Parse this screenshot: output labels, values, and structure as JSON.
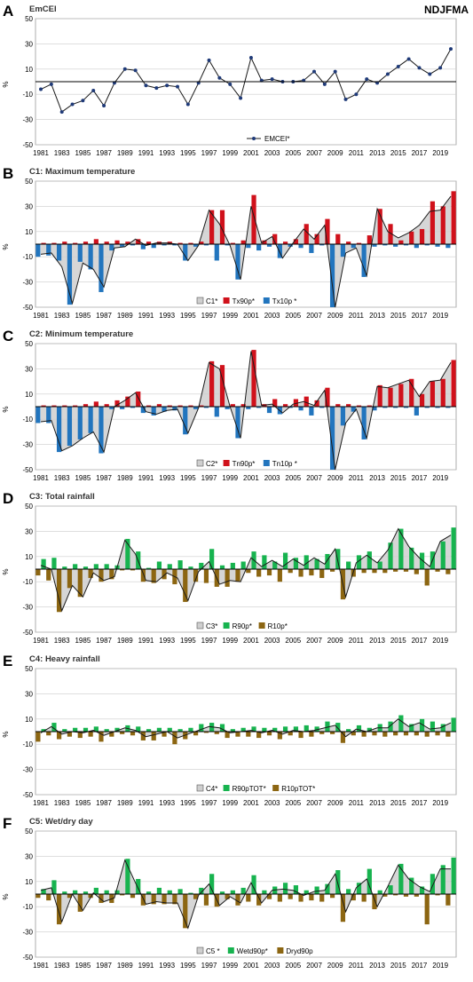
{
  "figure": {
    "season": "NDJFMA",
    "y_unit": "%",
    "years": [
      "1981",
      "1982",
      "1983",
      "1984",
      "1985",
      "1986",
      "1987",
      "1988",
      "1989",
      "1990",
      "1991",
      "1992",
      "1993",
      "1994",
      "1995",
      "1996",
      "1997",
      "1998",
      "1999",
      "2000",
      "2001",
      "2002",
      "2003",
      "2004",
      "2005",
      "2006",
      "2007",
      "2008",
      "2009",
      "2010",
      "2011",
      "2012",
      "2013",
      "2014",
      "2015",
      "2016",
      "2017",
      "2018",
      "2019",
      "2020"
    ],
    "x_tick_labels": [
      "1981",
      "1983",
      "1985",
      "1987",
      "1989",
      "1991",
      "1993",
      "1995",
      "1997",
      "1999",
      "2001",
      "2003",
      "2005",
      "2007",
      "2009",
      "2011",
      "2013",
      "2015",
      "2017",
      "2019"
    ],
    "colors": {
      "hot": "#d0111b",
      "cold": "#2275be",
      "wet": "#17b34f",
      "dry": "#8c6612",
      "line": "#1a1a1a",
      "marker": "#1f3a78",
      "area": "#cfcfcf",
      "grid": "#cccccc"
    }
  },
  "chart_data": [
    {
      "type": "line",
      "panel_letter": "A",
      "title": "EmCEI",
      "ylim": [
        -50,
        50
      ],
      "yticks": [
        50,
        30,
        10,
        -10,
        -30,
        -50
      ],
      "grid": true,
      "legend_position": "bottom-center",
      "series": [
        {
          "name": "EMCEI*",
          "values": [
            -6,
            -2,
            -24,
            -18,
            -15,
            -7,
            -19,
            -1,
            10,
            9,
            -3,
            -5,
            -3,
            -4,
            -18,
            -1,
            17,
            3,
            -2,
            -13,
            19,
            1,
            2,
            0,
            0,
            1,
            8,
            -2,
            8,
            -14,
            -10,
            2,
            -1,
            6,
            12,
            18,
            11,
            6,
            11,
            26
          ]
        }
      ]
    },
    {
      "type": "bar",
      "panel_letter": "B",
      "title": "C1: Maximum temperature",
      "ylim": [
        -50,
        50
      ],
      "yticks": [
        50,
        30,
        10,
        -10,
        -30,
        -50
      ],
      "grid": true,
      "legend_position": "bottom-center",
      "series": [
        {
          "name": "C1*",
          "style": "area",
          "values": [
            -8,
            -7,
            -18,
            -47,
            -15,
            -20,
            -34,
            -3,
            -2,
            4,
            -1,
            1,
            1,
            0,
            -13,
            -1,
            27,
            16,
            -1,
            -28,
            30,
            1,
            6,
            -11,
            1,
            12,
            4,
            15,
            -50,
            -7,
            -3,
            -25,
            28,
            10,
            5,
            9,
            15,
            26,
            27,
            38
          ]
        },
        {
          "name": "Tx90p*",
          "style": "bar-up",
          "values": [
            1,
            1,
            2,
            1,
            2,
            4,
            2,
            3,
            2,
            4,
            2,
            2,
            2,
            1,
            1,
            2,
            27,
            27,
            1,
            3,
            39,
            3,
            8,
            2,
            4,
            16,
            8,
            20,
            8,
            2,
            1,
            7,
            28,
            16,
            3,
            10,
            12,
            34,
            30,
            42
          ]
        },
        {
          "name": "Tx10p *",
          "style": "bar-down",
          "values": [
            -10,
            -9,
            -13,
            -48,
            -14,
            -20,
            -38,
            -5,
            -2,
            -1,
            -4,
            -3,
            -1,
            -1,
            -13,
            -2,
            -1,
            -13,
            -1,
            -28,
            -3,
            -5,
            -2,
            -11,
            -2,
            -3,
            -7,
            -1,
            -50,
            -10,
            -3,
            -26,
            -2,
            -1,
            -2,
            -1,
            -3,
            -1,
            -2,
            -3
          ]
        }
      ]
    },
    {
      "type": "bar",
      "panel_letter": "C",
      "title": "C2: Minimum temperature",
      "ylim": [
        -50,
        50
      ],
      "yticks": [
        50,
        30,
        10,
        -10,
        -30,
        -50
      ],
      "grid": true,
      "legend_position": "bottom-center",
      "series": [
        {
          "name": "C2*",
          "style": "area",
          "values": [
            -12,
            -11,
            -35,
            -31,
            -25,
            -20,
            -36,
            0,
            5,
            11,
            -4,
            -6,
            -3,
            -2,
            -21,
            -1,
            35,
            30,
            0,
            -25,
            44,
            1,
            2,
            -5,
            2,
            4,
            1,
            13,
            -50,
            -13,
            -2,
            -25,
            16,
            15,
            18,
            21,
            8,
            20,
            21,
            35
          ]
        },
        {
          "name": "Tn90p*",
          "style": "bar-up",
          "values": [
            1,
            1,
            1,
            1,
            2,
            4,
            2,
            5,
            8,
            12,
            1,
            2,
            1,
            1,
            1,
            1,
            36,
            33,
            2,
            2,
            45,
            2,
            6,
            2,
            6,
            8,
            5,
            15,
            2,
            2,
            1,
            1,
            17,
            15,
            18,
            22,
            10,
            20,
            22,
            37
          ]
        },
        {
          "name": "Tn10p *",
          "style": "bar-down",
          "values": [
            -13,
            -13,
            -36,
            -31,
            -26,
            -21,
            -37,
            -2,
            -2,
            -1,
            -5,
            -7,
            -4,
            -3,
            -22,
            -2,
            -1,
            -8,
            -2,
            -25,
            -2,
            -1,
            -5,
            -6,
            -1,
            -3,
            -7,
            -1,
            -50,
            -15,
            -4,
            -26,
            -3,
            -1,
            -1,
            -1,
            -7,
            -1,
            -1,
            -1
          ]
        }
      ]
    },
    {
      "type": "bar",
      "panel_letter": "D",
      "title": "C3: Total rainfall",
      "ylim": [
        -50,
        50
      ],
      "yticks": [
        50,
        30,
        10,
        -10,
        -30,
        -50
      ],
      "grid": true,
      "legend_position": "bottom-center",
      "series": [
        {
          "name": "C3*",
          "style": "area",
          "values": [
            3,
            0,
            -33,
            -13,
            -22,
            -3,
            -9,
            -6,
            23,
            12,
            -9,
            -10,
            -3,
            -7,
            -25,
            -2,
            6,
            -12,
            -9,
            -10,
            9,
            2,
            7,
            2,
            8,
            3,
            9,
            4,
            16,
            -22,
            5,
            11,
            5,
            15,
            32,
            18,
            9,
            2,
            22,
            27
          ]
        },
        {
          "name": "R90p*",
          "style": "bar-up",
          "values": [
            8,
            9,
            2,
            4,
            2,
            4,
            4,
            3,
            24,
            14,
            1,
            6,
            4,
            7,
            2,
            5,
            16,
            3,
            5,
            6,
            14,
            11,
            6,
            13,
            9,
            11,
            8,
            12,
            16,
            6,
            11,
            14,
            6,
            21,
            32,
            17,
            13,
            14,
            22,
            33
          ]
        },
        {
          "name": "R10p*",
          "style": "bar-down",
          "values": [
            -5,
            -9,
            -34,
            -15,
            -22,
            -7,
            -10,
            -8,
            -1,
            -1,
            -10,
            -11,
            -8,
            -12,
            -26,
            -10,
            -11,
            -14,
            -14,
            -10,
            -3,
            -6,
            -5,
            -10,
            -3,
            -6,
            -5,
            -7,
            -2,
            -24,
            -6,
            -3,
            -3,
            -3,
            -2,
            -2,
            -4,
            -13,
            -2,
            -4
          ]
        }
      ]
    },
    {
      "type": "bar",
      "panel_letter": "E",
      "title": "C4: Heavy rainfall",
      "ylim": [
        -50,
        50
      ],
      "yticks": [
        50,
        30,
        10,
        -10,
        -30,
        -50
      ],
      "grid": true,
      "legend_position": "bottom-center",
      "series": [
        {
          "name": "C4*",
          "style": "area",
          "values": [
            -1,
            4,
            -2,
            0,
            -1,
            1,
            -3,
            0,
            3,
            1,
            -4,
            -2,
            0,
            -5,
            -2,
            1,
            4,
            3,
            -1,
            0,
            1,
            -1,
            1,
            -2,
            1,
            0,
            1,
            3,
            5,
            -4,
            2,
            0,
            3,
            3,
            10,
            4,
            7,
            2,
            3,
            7
          ]
        },
        {
          "name": "R90pTOT*",
          "style": "bar-up",
          "values": [
            2,
            7,
            2,
            3,
            3,
            4,
            2,
            3,
            5,
            4,
            2,
            3,
            3,
            2,
            3,
            6,
            7,
            6,
            2,
            3,
            4,
            3,
            3,
            4,
            4,
            5,
            4,
            8,
            7,
            2,
            5,
            3,
            6,
            8,
            13,
            6,
            10,
            8,
            6,
            11
          ]
        },
        {
          "name": "R10pTOT*",
          "style": "bar-down",
          "values": [
            -8,
            -3,
            -6,
            -4,
            -5,
            -4,
            -8,
            -4,
            -2,
            -3,
            -7,
            -7,
            -4,
            -10,
            -6,
            -3,
            -1,
            -2,
            -5,
            -4,
            -4,
            -5,
            -3,
            -6,
            -3,
            -5,
            -4,
            -2,
            -2,
            -9,
            -3,
            -4,
            -3,
            -4,
            -3,
            -3,
            -3,
            -4,
            -3,
            -4
          ]
        }
      ]
    },
    {
      "type": "bar",
      "panel_letter": "F",
      "title": "C5: Wet/dry day",
      "ylim": [
        -50,
        50
      ],
      "yticks": [
        50,
        30,
        10,
        -10,
        -30,
        -50
      ],
      "grid": true,
      "legend_position": "bottom-center",
      "series": [
        {
          "name": "C5 *",
          "style": "area",
          "values": [
            3,
            5,
            -22,
            0,
            -13,
            1,
            -6,
            -3,
            27,
            9,
            -8,
            -6,
            -7,
            -7,
            -27,
            -1,
            8,
            -9,
            -2,
            -7,
            9,
            -7,
            3,
            4,
            3,
            -1,
            2,
            3,
            16,
            -14,
            5,
            12,
            -10,
            6,
            23,
            12,
            6,
            2,
            20,
            20
          ]
        },
        {
          "name": "Wetd90p*",
          "style": "bar-up",
          "values": [
            4,
            11,
            2,
            3,
            2,
            5,
            3,
            3,
            28,
            12,
            2,
            5,
            3,
            4,
            1,
            5,
            16,
            2,
            3,
            5,
            15,
            3,
            6,
            9,
            7,
            3,
            6,
            8,
            19,
            4,
            9,
            20,
            3,
            7,
            24,
            13,
            6,
            16,
            23,
            29
          ]
        },
        {
          "name": "Dryd90p",
          "style": "bar-down",
          "values": [
            -3,
            -5,
            -24,
            -3,
            -14,
            -3,
            -7,
            -7,
            -1,
            -3,
            -9,
            -8,
            -8,
            -8,
            -27,
            -4,
            -9,
            -10,
            -4,
            -9,
            -6,
            -9,
            -4,
            -6,
            -4,
            -6,
            -5,
            -6,
            -3,
            -22,
            -5,
            -6,
            -12,
            -2,
            -1,
            -2,
            -2,
            -24,
            -1,
            -9
          ]
        }
      ]
    }
  ]
}
